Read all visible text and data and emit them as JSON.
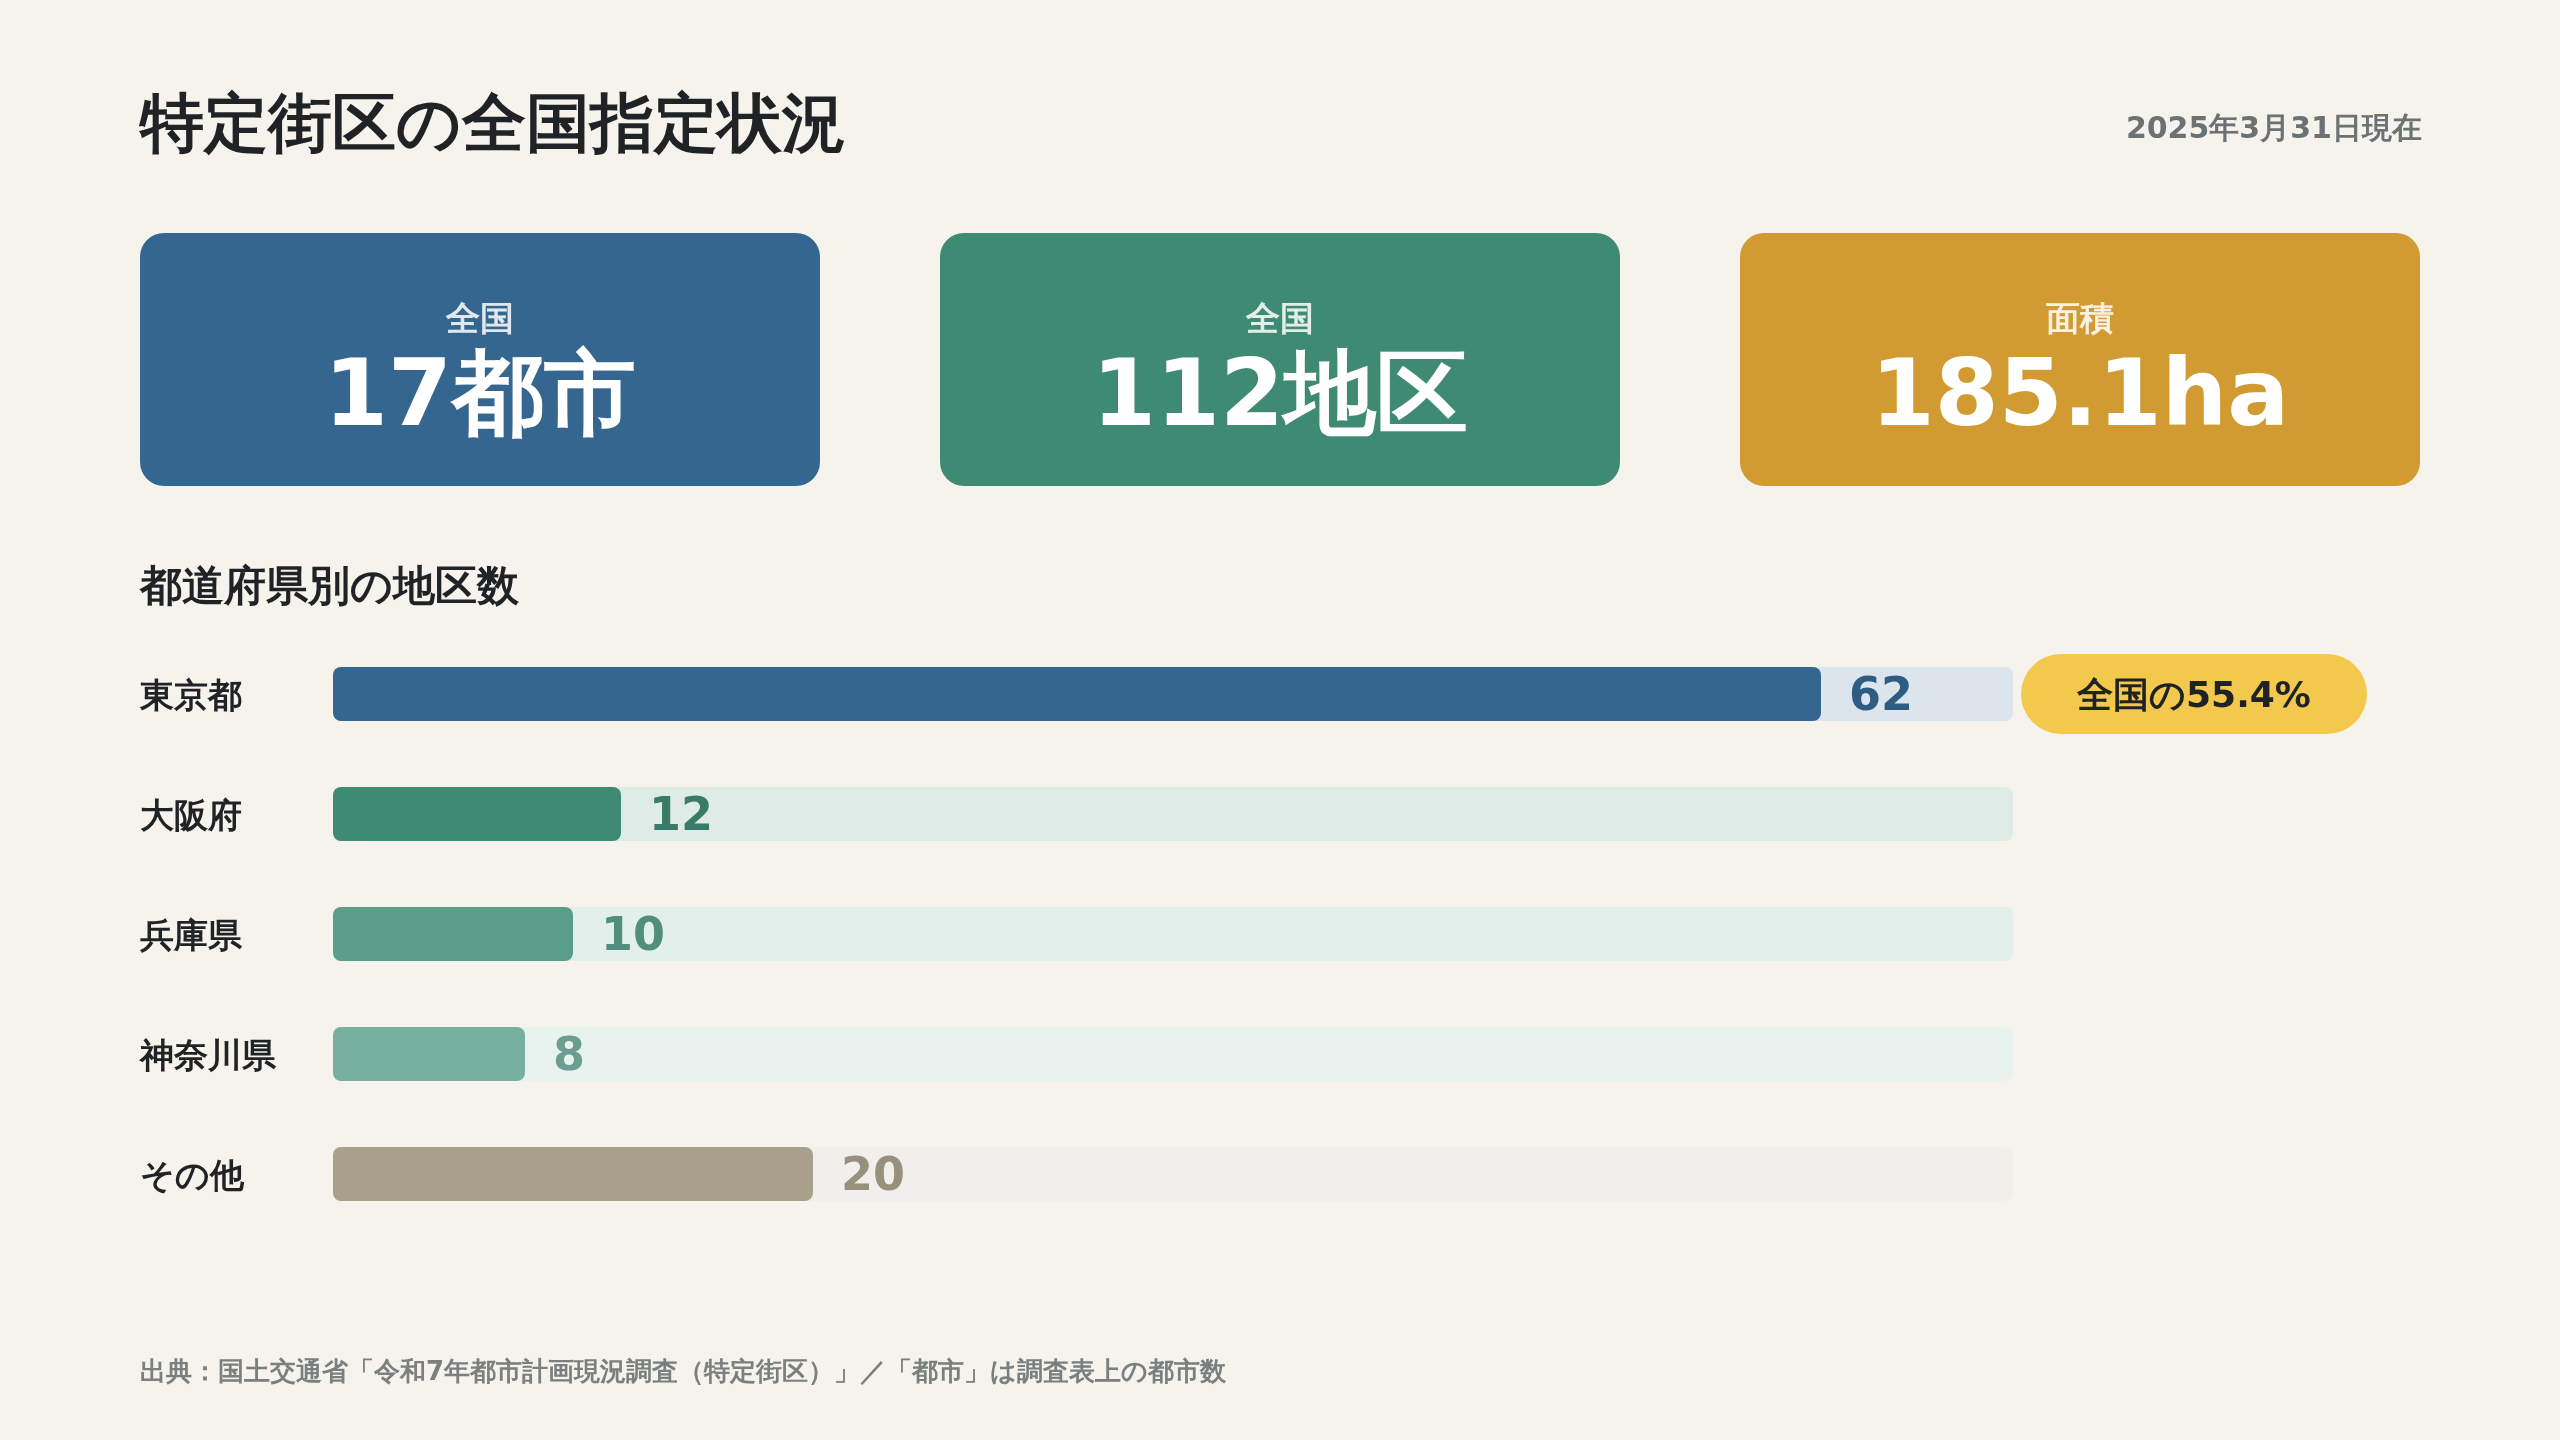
{
  "chart_data": [
    {
      "type": "other",
      "title": "特定街区の全国指定状況",
      "subtitle": "2025年3月31日現在"
    },
    {
      "type": "other",
      "title": "全国",
      "subtitle": "17都市",
      "color": "#346690"
    },
    {
      "type": "other",
      "title": "全国",
      "subtitle": "112地区",
      "color": "#3e8a72"
    },
    {
      "type": "other",
      "title": "面積",
      "subtitle": "185.1ha",
      "color": "#d29b32"
    },
    {
      "type": "bar",
      "orientation": "horizontal",
      "title": "都道府県別の地区数",
      "categories": [
        "東京都",
        "大阪府",
        "兵庫県",
        "神奈川県",
        "その他"
      ],
      "values": [
        62,
        12,
        10,
        8,
        20
      ],
      "colors": [
        "#346690",
        "#3e8a72",
        "#5a9e89",
        "#78b0a0",
        "#a8a08a"
      ],
      "xlim": [
        0,
        70
      ],
      "data_labels": true,
      "annotations": [
        "全国の55.4%",
        "出典：国土交通省「令和7年都市計画現況調査（特定街区）」／「都市」は調査表上の都市数"
      ]
    }
  ]
}
